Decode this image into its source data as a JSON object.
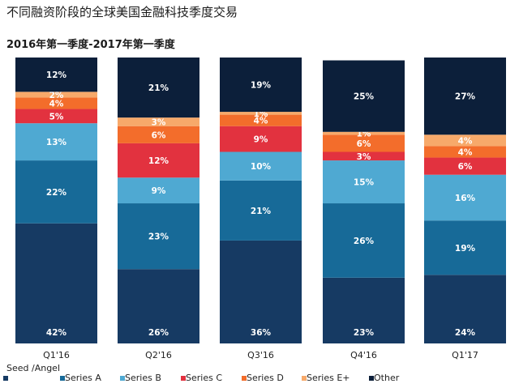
{
  "title": "不同融资阶段的全球美国金融科技季度交易",
  "subtitle": "2016年第一季度-2017年第一季度",
  "chart_data": {
    "type": "bar",
    "stacked": true,
    "normalized": true,
    "title": "不同融资阶段的全球美国金融科技季度交易",
    "subtitle": "2016年第一季度-2017年第一季度",
    "categories": [
      "Q1'16",
      "Q2'16",
      "Q3'16",
      "Q4'16",
      "Q1'17"
    ],
    "ylim": [
      0,
      100
    ],
    "series": [
      {
        "name": "Seed /Angel",
        "color": "#163a63",
        "values": [
          42,
          26,
          36,
          23,
          24
        ],
        "labels": [
          "42%",
          "26%",
          "36%",
          "23%",
          "24%"
        ]
      },
      {
        "name": "Series A",
        "color": "#176a98",
        "values": [
          22,
          23,
          21,
          26,
          19
        ],
        "labels": [
          "22%",
          "23%",
          "21%",
          "26%",
          "19%"
        ]
      },
      {
        "name": "Series B",
        "color": "#4fa9d2",
        "values": [
          13,
          9,
          10,
          15,
          16
        ],
        "labels": [
          "13%",
          "9%",
          "10%",
          "15%",
          "16%"
        ]
      },
      {
        "name": "Series C",
        "color": "#e2323f",
        "values": [
          5,
          12,
          9,
          3,
          6
        ],
        "labels": [
          "5%",
          "12%",
          "9%",
          "3%",
          "6%"
        ]
      },
      {
        "name": "Series D",
        "color": "#f36d2b",
        "values": [
          4,
          6,
          4,
          6,
          4
        ],
        "labels": [
          "4%",
          "6%",
          "4%",
          "6%",
          "4%"
        ]
      },
      {
        "name": "Series E+",
        "color": "#f7a96a",
        "values": [
          2,
          3,
          1,
          1,
          4
        ],
        "labels": [
          "2%",
          "3%",
          "1%",
          "1%",
          "4%"
        ]
      },
      {
        "name": "Other",
        "color": "#0c1f3a",
        "values": [
          12,
          21,
          19,
          25,
          27
        ],
        "labels": [
          "12%",
          "21%",
          "19%",
          "25%",
          "27%"
        ]
      }
    ],
    "legend": {
      "position": "bottom",
      "entries": [
        "Seed /Angel",
        "Series A",
        "Series B",
        "Series C",
        "Series D",
        "Series E+",
        "Other"
      ]
    }
  }
}
